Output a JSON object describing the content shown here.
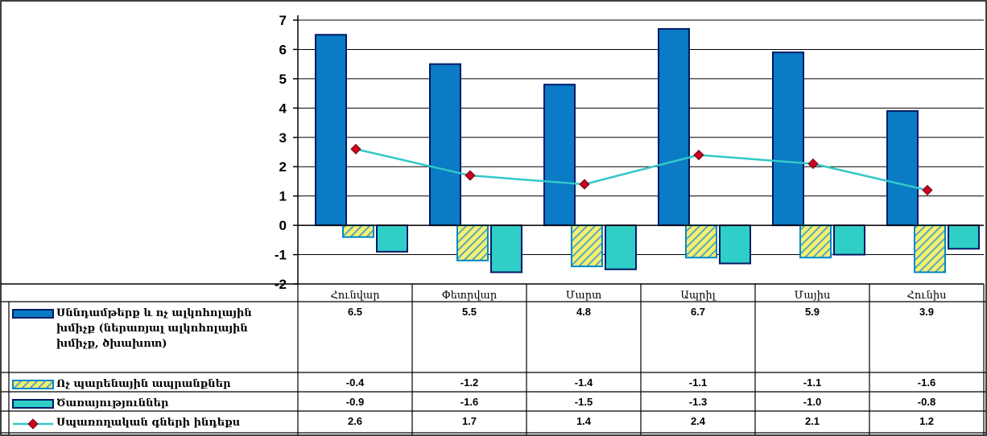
{
  "chart_data": {
    "type": "bar",
    "categories": [
      "Հունվար",
      "Փետրվար",
      "Մարտ",
      "Ապրիլ",
      "Մայիս",
      "Հունիս"
    ],
    "ylim": [
      -2,
      7
    ],
    "yticks": [
      "-2",
      "-1",
      "0",
      "1",
      "2",
      "3",
      "4",
      "5",
      "6",
      "7"
    ],
    "grid": true,
    "legend_placement": "data-table-left",
    "series": [
      {
        "name_lines": [
          "Սննդամթերք և ոչ ալկոհոլային",
          "խմիչք (ներառյալ ալկոհոլային",
          "խմիչք, ծխախոտ)"
        ],
        "chart_type": "bar",
        "color": "#0a7bc4",
        "values": [
          6.5,
          5.5,
          4.8,
          6.7,
          5.9,
          3.9
        ],
        "labels": [
          "6.5",
          "5.5",
          "4.8",
          "6.7",
          "5.9",
          "3.9"
        ]
      },
      {
        "name_lines": [
          "Ոչ պարենային ապրանքներ"
        ],
        "chart_type": "bar-hatched",
        "color": "#f5f070",
        "values": [
          -0.4,
          -1.2,
          -1.4,
          -1.1,
          -1.1,
          -1.6
        ],
        "labels": [
          "-0.4",
          "-1.2",
          "-1.4",
          "-1.1",
          "-1.1",
          "-1.6"
        ]
      },
      {
        "name_lines": [
          "Ծառայություններ"
        ],
        "chart_type": "bar",
        "color": "#2fcfc8",
        "values": [
          -0.9,
          -1.6,
          -1.5,
          -1.3,
          -1.0,
          -0.8
        ],
        "labels": [
          "-0.9",
          "-1.6",
          "-1.5",
          "-1.3",
          "-1.0",
          "-0.8"
        ]
      },
      {
        "name_lines": [
          "Սպառողական գների ինդեքս"
        ],
        "chart_type": "line",
        "color": "#33c8c8",
        "marker_color": "#cc0022",
        "values": [
          2.6,
          1.7,
          1.4,
          2.4,
          2.1,
          1.2
        ],
        "labels": [
          "2.6",
          "1.7",
          "1.4",
          "2.4",
          "2.1",
          "1.2"
        ]
      }
    ]
  }
}
